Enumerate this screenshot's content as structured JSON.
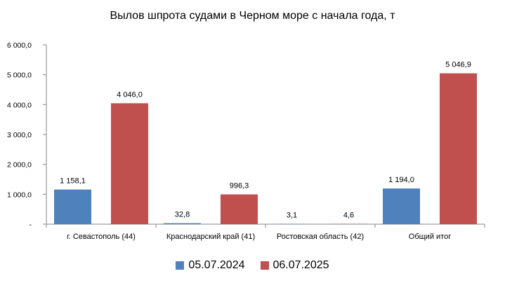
{
  "chart_data": {
    "type": "bar",
    "title": "Вылов шпрота судами в Черном море с начала  года, т",
    "categories": [
      "г. Севастополь (44)",
      "Краснодарский край (41)",
      "Ростовская область (42)",
      "Общий итог"
    ],
    "series": [
      {
        "name": "05.07.2024",
        "color": "#4F81BD",
        "values": [
          1158.1,
          32.8,
          3.1,
          1194.0
        ],
        "labels": [
          "1 158,1",
          "32,8",
          "3,1",
          "1 194,0"
        ]
      },
      {
        "name": "06.07.2025",
        "color": "#C0504D",
        "values": [
          4046.0,
          996.3,
          4.6,
          5046.9
        ],
        "labels": [
          "4 046,0",
          "996,3",
          "4,6",
          "5 046,9"
        ]
      }
    ],
    "ylim": [
      0,
      6000
    ],
    "yticks": [
      0,
      1000,
      2000,
      3000,
      4000,
      5000,
      6000
    ],
    "ytick_labels": [
      "-",
      "1 000,0",
      "2 000,0",
      "3 000,0",
      "4 000,0",
      "5 000,0",
      "6 000,0"
    ],
    "xlabel": "",
    "ylabel": "",
    "grid": false,
    "legend_position": "bottom"
  }
}
